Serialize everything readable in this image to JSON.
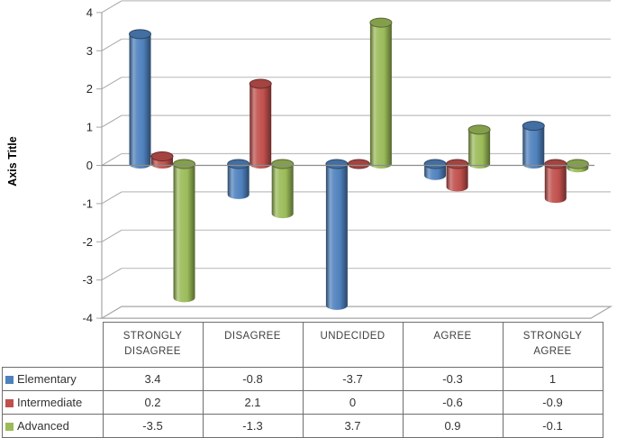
{
  "chart": {
    "axis_title": "Axis Title",
    "y_ticks": [
      4,
      3,
      2,
      1,
      0,
      -1,
      -2,
      -3,
      -4
    ],
    "gridline_color": "#bfbfbf",
    "wall_color": "#a6a6a6",
    "zero_line_color": "#8c8c8c",
    "table_border_color": "#6e6e6e",
    "text_color": "#404040"
  },
  "chart_data": {
    "type": "bar",
    "subtype": "3d-cylinder",
    "categories": [
      "STRONGLY DISAGREE",
      "DISAGREE",
      "UNDECIDED",
      "AGREE",
      "STRONGLY AGREE"
    ],
    "series": [
      {
        "name": "Elementary",
        "color": "#4F81BD",
        "values": [
          3.4,
          -0.8,
          -3.7,
          -0.3,
          1
        ]
      },
      {
        "name": "Intermediate",
        "color": "#C0504D",
        "values": [
          0.2,
          2.1,
          0,
          -0.6,
          -0.9
        ]
      },
      {
        "name": "Advanced",
        "color": "#9BBB59",
        "values": [
          -3.5,
          -1.3,
          3.7,
          0.9,
          -0.1
        ]
      }
    ],
    "title": "",
    "xlabel": "",
    "ylabel": "Axis Title",
    "ylim": [
      -4,
      4
    ],
    "y_step": 1,
    "grid": true,
    "legend_position": "data-table-left",
    "data_table_shown": true
  }
}
